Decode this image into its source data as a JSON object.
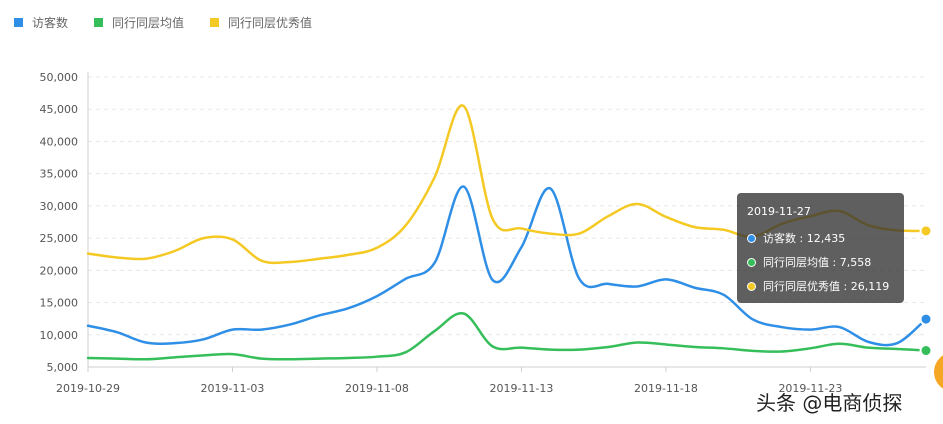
{
  "colors": {
    "visitors": "#2f8fe6",
    "peer_avg": "#35be5a",
    "peer_excellent": "#f5c924"
  },
  "legend": [
    {
      "label": "访客数",
      "color": "#2f8fe6"
    },
    {
      "label": "同行同层均值",
      "color": "#35be5a"
    },
    {
      "label": "同行同层优秀值",
      "color": "#f5c924"
    }
  ],
  "chart_data": {
    "type": "line",
    "x_start": "2019-10-29",
    "x_end": "2019-11-27",
    "x_ticks": [
      "2019-10-29",
      "2019-11-03",
      "2019-11-08",
      "2019-11-13",
      "2019-11-18",
      "2019-11-23"
    ],
    "y_ticks": [
      "5,000",
      "10,000",
      "15,000",
      "20,000",
      "25,000",
      "30,000",
      "35,000",
      "40,000",
      "45,000",
      "50,000"
    ],
    "ylim": [
      5000,
      50000
    ],
    "grid": true,
    "legend_position": "top-left",
    "x": [
      "2019-10-29",
      "2019-10-30",
      "2019-10-31",
      "2019-11-01",
      "2019-11-02",
      "2019-11-03",
      "2019-11-04",
      "2019-11-05",
      "2019-11-06",
      "2019-11-07",
      "2019-11-08",
      "2019-11-09",
      "2019-11-10",
      "2019-11-11",
      "2019-11-12",
      "2019-11-13",
      "2019-11-14",
      "2019-11-15",
      "2019-11-16",
      "2019-11-17",
      "2019-11-18",
      "2019-11-19",
      "2019-11-20",
      "2019-11-21",
      "2019-11-22",
      "2019-11-23",
      "2019-11-24",
      "2019-11-25",
      "2019-11-26",
      "2019-11-27"
    ],
    "series": [
      {
        "name": "访客数",
        "color": "#2f8fe6",
        "values": [
          11400,
          10400,
          8800,
          8700,
          9300,
          10800,
          10800,
          11600,
          13000,
          14100,
          16000,
          18700,
          21200,
          33000,
          18500,
          23600,
          32700,
          18700,
          17900,
          17500,
          18600,
          17300,
          16200,
          12400,
          11200,
          10800,
          11200,
          8900,
          8700,
          12435
        ]
      },
      {
        "name": "同行同层均值",
        "color": "#35be5a",
        "values": [
          6400,
          6300,
          6200,
          6500,
          6800,
          7000,
          6300,
          6200,
          6300,
          6400,
          6600,
          7300,
          10600,
          13300,
          8200,
          8000,
          7700,
          7700,
          8100,
          8800,
          8500,
          8100,
          7900,
          7500,
          7400,
          7900,
          8600,
          8000,
          7800,
          7558
        ]
      },
      {
        "name": "同行同层优秀值",
        "color": "#f5c924",
        "values": [
          22600,
          22000,
          21800,
          23000,
          25000,
          24800,
          21500,
          21300,
          21800,
          22400,
          23500,
          27000,
          34500,
          45500,
          28000,
          26500,
          25700,
          25700,
          28400,
          30300,
          28300,
          26700,
          26300,
          25200,
          27200,
          28400,
          29200,
          27000,
          26200,
          26119
        ]
      }
    ]
  },
  "tooltip": {
    "date": "2019-11-27",
    "rows": [
      {
        "label": "访客数 :  12,435",
        "color": "#2f8fe6"
      },
      {
        "label": "同行同层均值 :  7,558",
        "color": "#35be5a"
      },
      {
        "label": "同行同层优秀值 :  26,119",
        "color": "#f5c924"
      }
    ]
  },
  "watermark": "头条 @电商侦探"
}
